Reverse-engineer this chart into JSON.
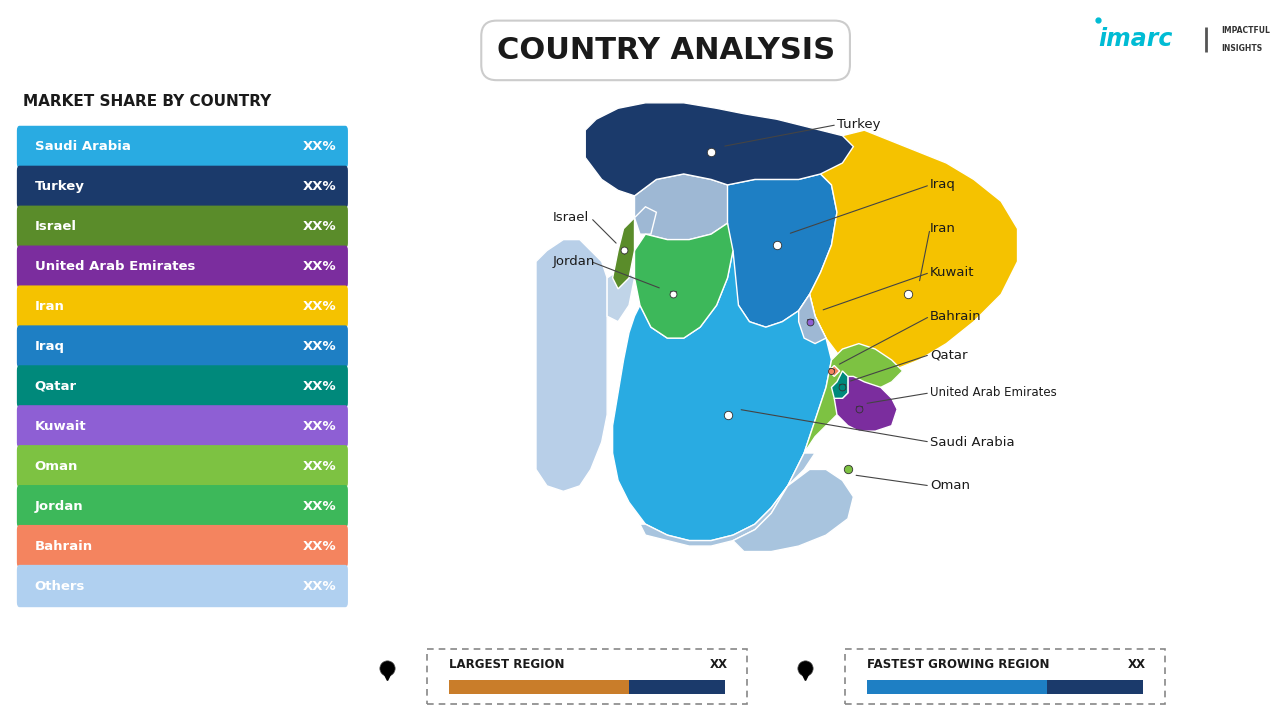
{
  "title": "COUNTRY ANALYSIS",
  "bg_color": "#ffffff",
  "legend_title": "MARKET SHARE BY COUNTRY",
  "legend_items": [
    {
      "label": "Saudi Arabia",
      "color": "#29abe2",
      "value": "XX%"
    },
    {
      "label": "Turkey",
      "color": "#1b3a6b",
      "value": "XX%"
    },
    {
      "label": "Israel",
      "color": "#5a8c2a",
      "value": "XX%"
    },
    {
      "label": "United Arab Emirates",
      "color": "#7b2d9e",
      "value": "XX%"
    },
    {
      "label": "Iran",
      "color": "#f5c200",
      "value": "XX%"
    },
    {
      "label": "Iraq",
      "color": "#1e7fc4",
      "value": "XX%"
    },
    {
      "label": "Qatar",
      "color": "#00897b",
      "value": "XX%"
    },
    {
      "label": "Kuwait",
      "color": "#8e5fd4",
      "value": "XX%"
    },
    {
      "label": "Oman",
      "color": "#7dc242",
      "value": "XX%"
    },
    {
      "label": "Jordan",
      "color": "#3db85a",
      "value": "XX%"
    },
    {
      "label": "Bahrain",
      "color": "#f4845f",
      "value": "XX%"
    },
    {
      "label": "Others",
      "color": "#b0d0f0",
      "value": "XX%"
    }
  ],
  "map_countries": {
    "Turkey": "#1b3a6b",
    "Iran": "#f5c200",
    "Iraq": "#1e7fc4",
    "Saudi_Arabia": "#29abe2",
    "Israel": "#5a8c2a",
    "Jordan": "#3db85a",
    "Kuwait": "#9eb8d4",
    "Qatar": "#00897b",
    "UAE": "#7b2d9e",
    "Bahrain": "#f4845f",
    "Oman": "#7dc242",
    "Egypt": "#b8cfe8",
    "Syria": "#9eb8d4",
    "Yemen": "#a8c4de",
    "Lebanon": "#9eb8d4"
  },
  "bottom_left_label": "LARGEST REGION",
  "bottom_left_value": "XX",
  "bottom_left_bar_c1": "#c97d2a",
  "bottom_left_bar_c2": "#1b3a6b",
  "bottom_right_label": "FASTEST GROWING REGION",
  "bottom_right_value": "XX",
  "bottom_right_bar_c1": "#1e7fc4",
  "bottom_right_bar_c2": "#1b3a6b"
}
